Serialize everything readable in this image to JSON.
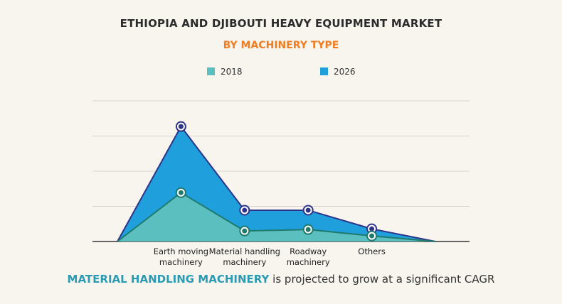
{
  "chart_data": {
    "type": "area",
    "title": "ETHIOPIA AND DJIBOUTI HEAVY EQUIPMENT MARKET",
    "subtitle": "BY MACHINERY TYPE",
    "categories": [
      null,
      "Earth moving machinery",
      "Material handling machinery",
      "Roadway machinery",
      "Others",
      null
    ],
    "series": [
      {
        "name": "2018",
        "color": "#5bbfc0",
        "line_color": "#1f7a6c",
        "values": [
          0,
          1.39,
          0.3,
          0.34,
          0.16,
          0
        ]
      },
      {
        "name": "2026",
        "color": "#1fa0dc",
        "line_color": "#2e348a",
        "values": [
          0,
          3.27,
          0.89,
          0.89,
          0.36,
          0
        ]
      }
    ],
    "ylim": [
      0,
      4
    ],
    "yticks": [
      0,
      1,
      2,
      3,
      4
    ],
    "grid": true,
    "footnote": {
      "highlight": "MATERIAL HANDLING MACHINERY",
      "text": "is projected to grow at a significant CAGR"
    }
  }
}
